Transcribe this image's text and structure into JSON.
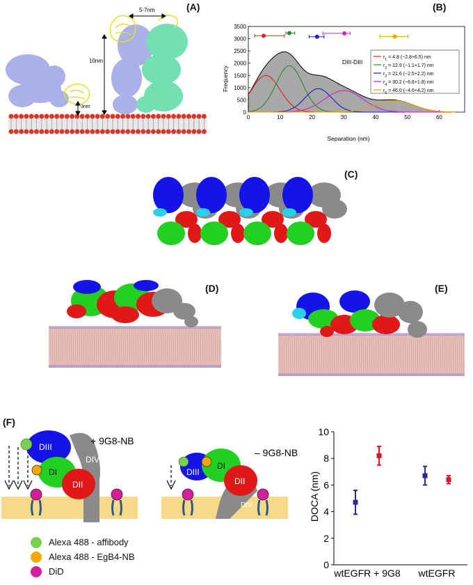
{
  "panels": {
    "a": "(A)",
    "b": "(B)",
    "c": "(C)",
    "d": "(D)",
    "e": "(E)",
    "f": "(F)"
  },
  "panel_a": {
    "width_annot": "5-7nm",
    "height_annot": "10nm",
    "gap_annot": "3nm"
  },
  "colors": {
    "lavender": "#aab0e8",
    "mint": "#72e0b0",
    "yellow": "#e6e02a",
    "dI": "#22d022",
    "dII": "#e01818",
    "dIII": "#1414e8",
    "dIV": "#8a8a8a",
    "cyan": "#28d0e8",
    "membrane": "#f7d98a",
    "lipid_head": "#d8382a",
    "did": "#d41e9a",
    "alexa488": "#78d050",
    "egb4": "#f5a800",
    "navy": "#2a2a8a",
    "red_point": "#e0102a"
  },
  "chart_data": [
    {
      "type": "area",
      "title": "DIII-DIII",
      "xlabel": "Separation (nm)",
      "ylabel": "Frequency",
      "xlim": [
        0,
        68
      ],
      "ylim": [
        0,
        3500
      ],
      "x_ticks": [
        0,
        10,
        20,
        30,
        40,
        50,
        60
      ],
      "y_ticks": [
        0,
        500,
        1000,
        1500,
        2000,
        2500,
        3000,
        3500
      ],
      "total_color": "#a8a8a8",
      "series": [
        {
          "name": "r1 = 4.8 (−2.8+6.5) nm",
          "sub": "1",
          "pre": "r",
          "post": " = 4.8 (−2.8+6.5) nm",
          "mu": 5.5,
          "amp": 1500,
          "sigma": 4.5,
          "color": "#e0201a",
          "point": 4.8,
          "err": [
            2.0,
            11.3
          ],
          "point_y": 3120
        },
        {
          "name": "r2 = 12.9 (−1.1+1.7) nm",
          "sub": "2",
          "pre": "r",
          "post": " = 12.9 (−1.1+1.7) nm",
          "mu": 12.9,
          "amp": 1900,
          "sigma": 4.2,
          "color": "#1f8f2a",
          "point": 12.9,
          "err": [
            11.8,
            14.6
          ],
          "point_y": 3230
        },
        {
          "name": "r3 = 21.6 (−2.5+2.2) nm",
          "sub": "3",
          "pre": "r",
          "post": " = 21.6 (−2.5+2.2) nm",
          "mu": 22,
          "amp": 960,
          "sigma": 4.2,
          "color": "#1c1cd0",
          "point": 21.6,
          "err": [
            19.1,
            23.8
          ],
          "point_y": 3080
        },
        {
          "name": "r4 = 30.2 (−6.8+1.8) nm",
          "sub": "4",
          "pre": "r",
          "post": " = 30.2 (−6.8+1.8) nm",
          "mu": 30,
          "amp": 880,
          "sigma": 6.0,
          "color": "#d21ed2",
          "point": 30.2,
          "err": [
            23.4,
            32.0
          ],
          "point_y": 3220
        },
        {
          "name": "r5 = 46.0 (−4.6+4.2) nm",
          "sub": "5",
          "pre": "r",
          "post": " = 46.0 (−4.6+4.2) nm",
          "mu": 46,
          "amp": 470,
          "sigma": 6.0,
          "color": "#f0a000",
          "point": 46.0,
          "err": [
            41.4,
            50.2
          ],
          "point_y": 3090
        }
      ]
    },
    {
      "type": "scatter",
      "xlabel": "",
      "ylabel": "DOCA (nm)",
      "ylim": [
        0,
        10
      ],
      "y_ticks": [
        0,
        2,
        4,
        6,
        8,
        10
      ],
      "categories": [
        "wtEGFR + 9G8",
        "wtEGFR"
      ],
      "points": [
        {
          "cat": 0,
          "offset": -1,
          "value": 4.7,
          "low": 3.8,
          "high": 5.6,
          "color": "#2a2a8a"
        },
        {
          "cat": 0,
          "offset": 1,
          "value": 8.2,
          "low": 7.5,
          "high": 8.9,
          "color": "#e0102a"
        },
        {
          "cat": 1,
          "offset": -1,
          "value": 6.7,
          "low": 6.0,
          "high": 7.4,
          "color": "#2a2a8a"
        },
        {
          "cat": 1,
          "offset": 1,
          "value": 6.4,
          "low": 6.1,
          "high": 6.7,
          "color": "#e0102a"
        }
      ]
    }
  ],
  "panel_f": {
    "left_label": "+ 9G8-NB",
    "right_label": "– 9G8-NB",
    "dIII": "DIII",
    "dI": "DI",
    "dII": "DII",
    "dIV": "DIV",
    "legend": [
      "Alexa 488 - affibody",
      "Alexa 488 - EgB4-NB",
      "DiD"
    ]
  }
}
